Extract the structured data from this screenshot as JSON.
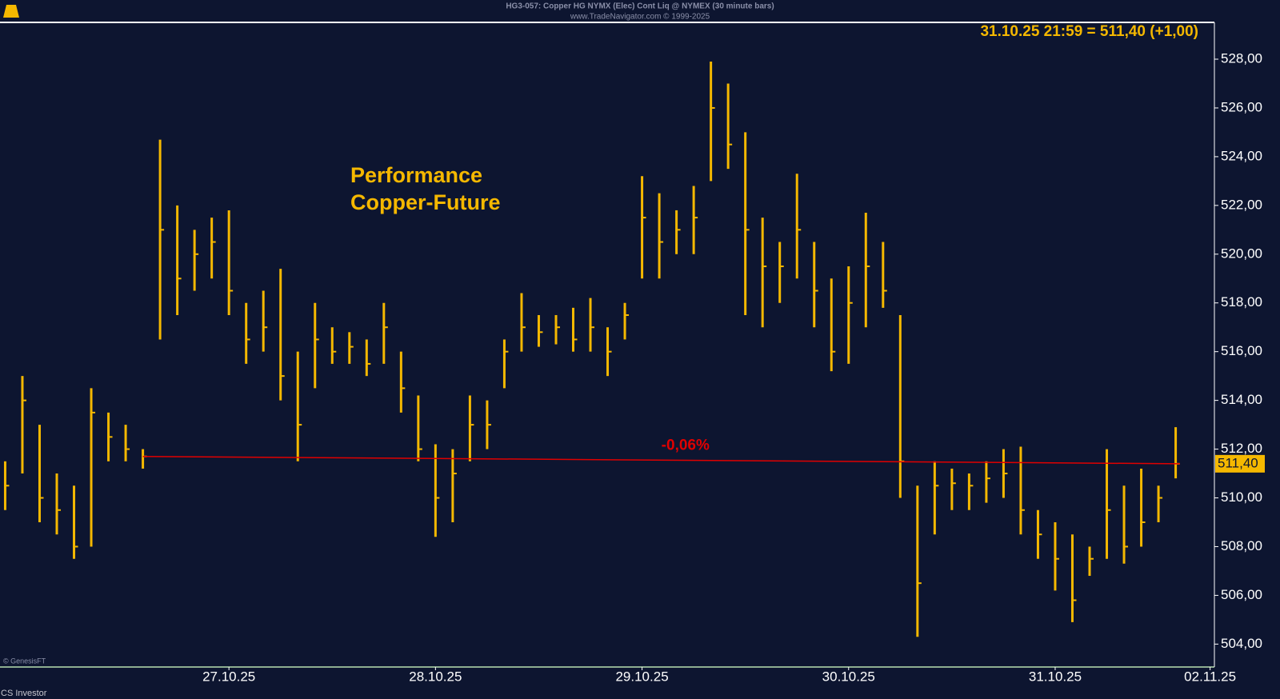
{
  "chart_data": {
    "type": "ohlc",
    "title": "HG3-057:  Copper HG NYMX (Elec) Cont Liq @ NYMEX  (30 minute bars)",
    "subtitle": "www.TradeNavigator.com © 1999-2025",
    "info": "31.10.25 21:59 = 511,40 (+1,00)",
    "annotation": [
      "Performance",
      "Copper-Future"
    ],
    "last_value_label": "511,40",
    "color": "#f5b800",
    "x": [
      -26,
      -24,
      -22,
      -20,
      -18,
      -16,
      -14,
      -12,
      -10,
      -8,
      -6,
      -4,
      -2,
      0,
      2,
      4,
      6,
      8,
      10,
      12,
      14,
      16,
      18,
      20,
      22,
      24,
      26,
      28,
      30,
      32,
      34,
      36,
      38,
      40,
      42,
      44,
      46,
      48,
      50,
      52,
      54,
      56,
      58,
      60,
      62,
      64,
      66,
      68,
      70,
      72,
      74,
      76,
      78,
      80,
      82,
      84,
      86,
      88,
      90,
      92,
      94,
      96,
      98,
      100,
      102,
      104,
      106,
      108,
      110
    ],
    "low": [
      509.5,
      511,
      509,
      508.5,
      507.5,
      508,
      511.5,
      511.5,
      511.2,
      516.5,
      517.5,
      518.5,
      519,
      517.5,
      515.5,
      516,
      514,
      511.5,
      514.5,
      515.5,
      515.5,
      515,
      515.5,
      513.5,
      511.5,
      508.4,
      509,
      511.5,
      512,
      514.5,
      516,
      516.2,
      516.3,
      516,
      516,
      515,
      516.5,
      519,
      519,
      520,
      520,
      523,
      523.5,
      517.5,
      517,
      518,
      519,
      517,
      515.2,
      515.5,
      517,
      517.8,
      510,
      504.3,
      508.5,
      509.5,
      509.5,
      509.8,
      510,
      508.5,
      507.5,
      506.2,
      504.9,
      506.8,
      507.5,
      507.3,
      508,
      509,
      510.8
    ],
    "high": [
      511.5,
      515,
      513,
      511,
      510.5,
      514.5,
      513.5,
      513,
      512,
      524.7,
      522,
      521,
      521.5,
      521.8,
      518,
      518.5,
      519.4,
      516,
      518,
      517,
      516.8,
      516.5,
      518,
      516,
      514.2,
      512.2,
      512,
      514.2,
      514,
      516.5,
      518.4,
      517.5,
      517.5,
      517.8,
      518.2,
      517,
      518,
      523.2,
      522.5,
      521.8,
      522.8,
      527.9,
      527,
      525,
      521.5,
      520.5,
      523.3,
      520.5,
      519,
      519.5,
      521.7,
      520.5,
      517.5,
      510.5,
      511.5,
      511.2,
      511,
      511.5,
      512,
      512.1,
      509.5,
      509,
      508.5,
      508,
      512,
      510.5,
      511.2,
      510.5,
      512.9
    ],
    "close": [
      510.5,
      514,
      510,
      509.5,
      508,
      513.5,
      512.5,
      512,
      511.7,
      521,
      519,
      520,
      520.5,
      518.5,
      516.5,
      517,
      515,
      513,
      516.5,
      516,
      516.2,
      515.5,
      517,
      514.5,
      512,
      510,
      511,
      513,
      513,
      516,
      517,
      516.8,
      517,
      516.5,
      517,
      516,
      517.5,
      521.5,
      520.5,
      521,
      521.5,
      526,
      524.5,
      521,
      519.5,
      519.5,
      521,
      518.5,
      516,
      518,
      519.5,
      518.5,
      511.5,
      506.5,
      510.5,
      510.6,
      510.5,
      510.8,
      511,
      509.5,
      508.5,
      507.5,
      505.8,
      507.5,
      509.5,
      508,
      509,
      510,
      511.4
    ],
    "reference_line": {
      "x": [
        -10,
        110.5
      ],
      "values": [
        511.7,
        511.4
      ],
      "label": "-0,06%",
      "color": "#e00000"
    },
    "xlim": [
      -26.6,
      114.5
    ],
    "ylim": [
      503.06,
      529.51
    ],
    "xticks": [
      {
        "value": 0,
        "label": "27.10.25"
      },
      {
        "value": 24,
        "label": "28.10.25"
      },
      {
        "value": 48,
        "label": "29.10.25"
      },
      {
        "value": 72,
        "label": "30.10.25"
      },
      {
        "value": 96,
        "label": "31.10.25"
      },
      {
        "value": 114,
        "label": "02.11.25"
      }
    ],
    "yticks": [
      {
        "value": 504,
        "label": "504,00"
      },
      {
        "value": 506,
        "label": "506,00"
      },
      {
        "value": 508,
        "label": "508,00"
      },
      {
        "value": 510,
        "label": "510,00"
      },
      {
        "value": 512,
        "label": "512,00"
      },
      {
        "value": 514,
        "label": "514,00"
      },
      {
        "value": 516,
        "label": "516,00"
      },
      {
        "value": 518,
        "label": "518,00"
      },
      {
        "value": 520,
        "label": "520,00"
      },
      {
        "value": 522,
        "label": "522,00"
      },
      {
        "value": 524,
        "label": "524,00"
      },
      {
        "value": 526,
        "label": "526,00"
      },
      {
        "value": 528,
        "label": "528,00"
      }
    ]
  },
  "footer": {
    "watermark": "© GenesisFT",
    "credit": "CS Investor"
  }
}
